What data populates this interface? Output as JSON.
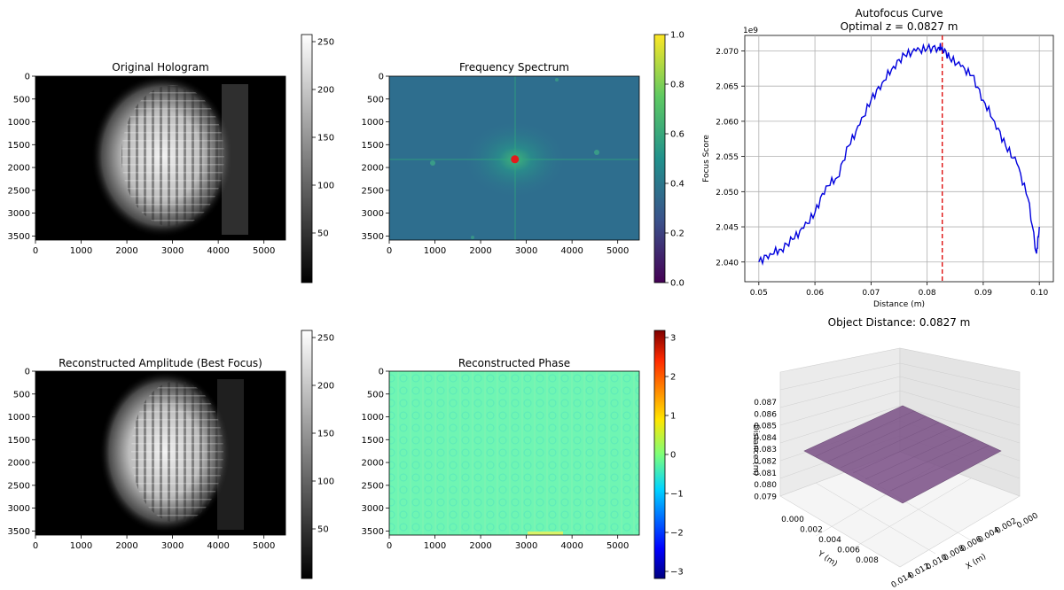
{
  "panels": {
    "hologram": {
      "title": "Original Hologram",
      "xticks": [
        "0",
        "1000",
        "2000",
        "3000",
        "4000",
        "5000"
      ],
      "yticks": [
        "0",
        "500",
        "1000",
        "1500",
        "2000",
        "2500",
        "3000",
        "3500"
      ],
      "colorbar_ticks": [
        "250",
        "200",
        "150",
        "100",
        "50"
      ],
      "colormap": "gray"
    },
    "spectrum": {
      "title": "Frequency Spectrum",
      "xticks": [
        "0",
        "1000",
        "2000",
        "3000",
        "4000",
        "5000"
      ],
      "yticks": [
        "0",
        "500",
        "1000",
        "1500",
        "2000",
        "2500",
        "3000",
        "3500"
      ],
      "colorbar_ticks": [
        "1.0",
        "0.8",
        "0.6",
        "0.4",
        "0.2",
        "0.0"
      ],
      "colormap": "viridis",
      "marker": {
        "x": 2750,
        "y": 1820,
        "color": "#e31a1c"
      }
    },
    "amplitude": {
      "title": "Reconstructed Amplitude (Best Focus)",
      "xticks": [
        "0",
        "1000",
        "2000",
        "3000",
        "4000",
        "5000"
      ],
      "yticks": [
        "0",
        "500",
        "1000",
        "1500",
        "2000",
        "2500",
        "3000",
        "3500"
      ],
      "colorbar_ticks": [
        "250",
        "200",
        "150",
        "100",
        "50"
      ],
      "colormap": "gray"
    },
    "phase": {
      "title": "Reconstructed Phase",
      "xticks": [
        "0",
        "1000",
        "2000",
        "3000",
        "4000",
        "5000"
      ],
      "yticks": [
        "0",
        "500",
        "1000",
        "1500",
        "2000",
        "2500",
        "3000",
        "3500"
      ],
      "colorbar_ticks": [
        "3",
        "2",
        "1",
        "0",
        "−1",
        "−2",
        "−3"
      ],
      "colormap": "jet"
    },
    "surface": {
      "title": "Object Distance: 0.0827 m",
      "zlabel": "Distance (m)",
      "xlabel": "X (m)",
      "ylabel": "Y (m)",
      "zticks": [
        "0.087",
        "0.086",
        "0.085",
        "0.084",
        "0.083",
        "0.082",
        "0.081",
        "0.080",
        "0.079"
      ],
      "xticks": [
        "0.000",
        "0.002",
        "0.004",
        "0.006",
        "0.008",
        "0.010",
        "0.012",
        "0.014"
      ],
      "yticks": [
        "0.000",
        "0.002",
        "0.004",
        "0.006",
        "0.008"
      ],
      "surface_color": "#7a4f86",
      "z_value": 0.0827
    }
  },
  "chart_data": {
    "type": "line",
    "title": "Autofocus Curve",
    "subtitle": "Optimal z = 0.0827 m",
    "xlabel": "Distance (m)",
    "ylabel": "Focus Score",
    "y_scale_label": "1e9",
    "xlim": [
      0.0475,
      0.1025
    ],
    "ylim": [
      2.0372,
      2.0722
    ],
    "xticks": [
      "0.05",
      "0.06",
      "0.07",
      "0.08",
      "0.09",
      "0.10"
    ],
    "yticks": [
      "2.040",
      "2.045",
      "2.050",
      "2.055",
      "2.060",
      "2.065",
      "2.070"
    ],
    "grid": true,
    "line_color": "#0000dd",
    "optimal_x": 0.0827,
    "optimal_color": "#dd0000",
    "series": [
      {
        "x": [
          0.05,
          0.052,
          0.054,
          0.056,
          0.058,
          0.06,
          0.062,
          0.064,
          0.066,
          0.068,
          0.07,
          0.072,
          0.074,
          0.076,
          0.078,
          0.08,
          0.082,
          0.0827,
          0.084,
          0.086,
          0.088,
          0.09,
          0.092,
          0.094,
          0.096,
          0.098,
          0.0995,
          0.1
        ],
        "y": [
          2.04,
          2.0412,
          2.0418,
          2.0432,
          2.0448,
          2.047,
          2.0508,
          2.052,
          2.0565,
          2.0595,
          2.063,
          2.0655,
          2.0678,
          2.0694,
          2.07,
          2.0703,
          2.0705,
          2.0705,
          2.069,
          2.0678,
          2.0665,
          2.063,
          2.06,
          2.0565,
          2.054,
          2.049,
          2.0412,
          2.045
        ]
      }
    ]
  }
}
